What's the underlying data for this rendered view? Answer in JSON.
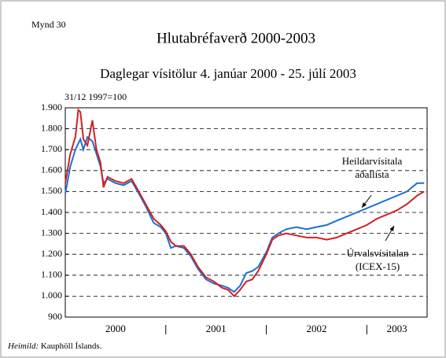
{
  "chart_data": {
    "type": "line",
    "figure_label": "Mynd 30",
    "title": "Hlutabréfaverð 2000-2003",
    "subtitle": "Daglegar vísitölur 4. janúar 2000 - 25. júlí 2003",
    "ylabel": "31/12 1997=100",
    "source_label": "Heimild:",
    "source": "Kauphöll Íslands.",
    "ylim": [
      900,
      1900
    ],
    "yticks": [
      {
        "value": 900,
        "label": "900"
      },
      {
        "value": 1000,
        "label": "1.000"
      },
      {
        "value": 1100,
        "label": "1.100"
      },
      {
        "value": 1200,
        "label": "1.200"
      },
      {
        "value": 1300,
        "label": "1.300"
      },
      {
        "value": 1400,
        "label": "1.400"
      },
      {
        "value": 1500,
        "label": "1.500"
      },
      {
        "value": 1600,
        "label": "1.600"
      },
      {
        "value": 1700,
        "label": "1.700"
      },
      {
        "value": 1800,
        "label": "1.800"
      },
      {
        "value": 1900,
        "label": "1.900"
      }
    ],
    "xlim": [
      2000,
      2003.6
    ],
    "xticks": [
      2001,
      2002,
      2003
    ],
    "year_labels": [
      "2000",
      "2001",
      "2002",
      "2003"
    ],
    "grid": true,
    "x": [
      2000.0,
      2000.05,
      2000.1,
      2000.13,
      2000.15,
      2000.18,
      2000.22,
      2000.27,
      2000.31,
      2000.35,
      2000.38,
      2000.42,
      2000.5,
      2000.58,
      2000.66,
      2000.72,
      2000.8,
      2000.88,
      2000.95,
      2001.0,
      2001.05,
      2001.1,
      2001.18,
      2001.25,
      2001.32,
      2001.4,
      2001.48,
      2001.56,
      2001.62,
      2001.68,
      2001.74,
      2001.8,
      2001.86,
      2001.92,
      2002.0,
      2002.06,
      2002.12,
      2002.2,
      2002.3,
      2002.4,
      2002.5,
      2002.6,
      2002.7,
      2002.8,
      2002.9,
      2003.0,
      2003.1,
      2003.2,
      2003.3,
      2003.4,
      2003.5,
      2003.57
    ],
    "series": [
      {
        "name": "Heildarvísitala aðallista",
        "color": "#1f6fd0",
        "values": [
          1490,
          1620,
          1700,
          1730,
          1750,
          1700,
          1760,
          1740,
          1680,
          1620,
          1540,
          1560,
          1540,
          1530,
          1550,
          1500,
          1430,
          1350,
          1330,
          1300,
          1230,
          1240,
          1230,
          1190,
          1130,
          1080,
          1060,
          1050,
          1040,
          1020,
          1050,
          1110,
          1120,
          1140,
          1210,
          1280,
          1300,
          1320,
          1330,
          1320,
          1330,
          1340,
          1360,
          1380,
          1400,
          1420,
          1440,
          1460,
          1480,
          1500,
          1540,
          1540
        ]
      },
      {
        "name": "Úrvalsvísitalan (ICEX-15)",
        "color": "#d42020",
        "values": [
          1540,
          1680,
          1760,
          1890,
          1880,
          1750,
          1720,
          1840,
          1700,
          1640,
          1520,
          1570,
          1550,
          1540,
          1560,
          1510,
          1440,
          1370,
          1340,
          1310,
          1260,
          1240,
          1240,
          1200,
          1140,
          1090,
          1070,
          1040,
          1030,
          1000,
          1030,
          1070,
          1080,
          1120,
          1200,
          1270,
          1290,
          1300,
          1290,
          1280,
          1280,
          1270,
          1280,
          1300,
          1320,
          1340,
          1370,
          1390,
          1410,
          1440,
          1480,
          1500
        ]
      }
    ],
    "annotations": [
      {
        "lines": [
          "Heildarvísitala",
          "aðallista"
        ]
      },
      {
        "lines": [
          "Úrvalsvísitalan",
          "(ICEX-15)"
        ]
      }
    ]
  }
}
